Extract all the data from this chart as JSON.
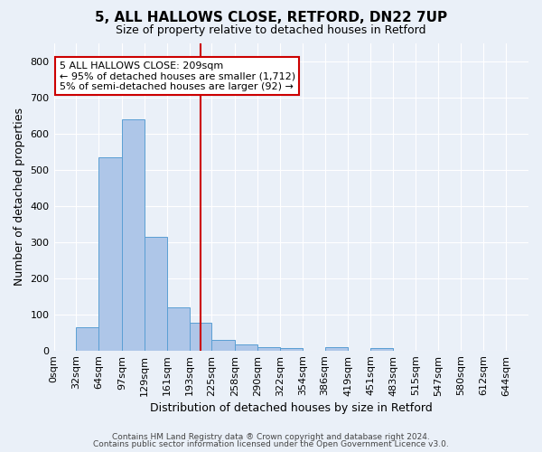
{
  "title1": "5, ALL HALLOWS CLOSE, RETFORD, DN22 7UP",
  "title2": "Size of property relative to detached houses in Retford",
  "xlabel": "Distribution of detached houses by size in Retford",
  "ylabel": "Number of detached properties",
  "footnote1": "Contains HM Land Registry data ® Crown copyright and database right 2024.",
  "footnote2": "Contains public sector information licensed under the Open Government Licence v3.0.",
  "bin_labels": [
    "0sqm",
    "32sqm",
    "64sqm",
    "97sqm",
    "129sqm",
    "161sqm",
    "193sqm",
    "225sqm",
    "258sqm",
    "290sqm",
    "322sqm",
    "354sqm",
    "386sqm",
    "419sqm",
    "451sqm",
    "483sqm",
    "515sqm",
    "547sqm",
    "580sqm",
    "612sqm",
    "644sqm"
  ],
  "bar_heights": [
    0,
    65,
    535,
    640,
    315,
    118,
    77,
    28,
    17,
    10,
    7,
    0,
    9,
    0,
    7,
    0,
    0,
    0,
    0,
    0,
    0
  ],
  "bar_color": "#aec6e8",
  "bar_edge_color": "#5a9fd4",
  "background_color": "#eaf0f8",
  "grid_color": "#ffffff",
  "vline_x_val": 209,
  "vline_color": "#cc0000",
  "annotation_line1": "5 ALL HALLOWS CLOSE: 209sqm",
  "annotation_line2": "← 95% of detached houses are smaller (1,712)",
  "annotation_line3": "5% of semi-detached houses are larger (92) →",
  "annotation_box_color": "#ffffff",
  "annotation_box_edge_color": "#cc0000",
  "ylim": [
    0,
    850
  ],
  "yticks": [
    0,
    100,
    200,
    300,
    400,
    500,
    600,
    700,
    800
  ],
  "bin_edges": [
    0,
    32,
    64,
    97,
    129,
    161,
    193,
    225,
    258,
    290,
    322,
    354,
    386,
    419,
    451,
    483,
    515,
    547,
    580,
    612,
    644,
    676
  ],
  "title1_fontsize": 11,
  "title2_fontsize": 9,
  "xlabel_fontsize": 9,
  "ylabel_fontsize": 9,
  "footnote_fontsize": 6.5,
  "annotation_fontsize": 8,
  "tick_fontsize": 8
}
